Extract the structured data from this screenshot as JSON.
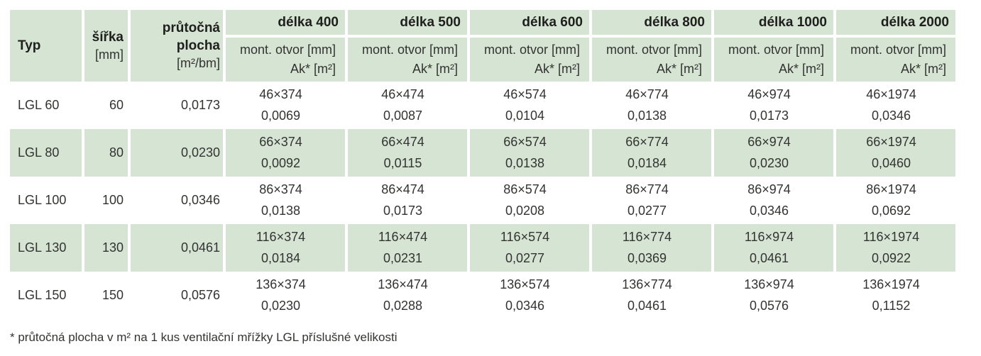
{
  "colors": {
    "band_green": "#d6e4d3",
    "text": "#333331",
    "text_bold": "#1f1f1d",
    "background": "#ffffff"
  },
  "header": {
    "typ": "Typ",
    "sirka_line1": "šířka",
    "sirka_line2": "[mm]",
    "plocha_line1": "průtočná",
    "plocha_line2": "plocha",
    "plocha_line3": "[m²/bm]",
    "delka_labels": [
      "délka 400",
      "délka 500",
      "délka 600",
      "délka 800",
      "délka 1000",
      "délka 2000"
    ],
    "sub_line1": "mont. otvor [mm]",
    "sub_line2": "Ak* [m²]"
  },
  "rows": [
    {
      "typ": "LGL 60",
      "sirka": "60",
      "plocha": "0,0173",
      "delka": [
        {
          "otvor": "46×374",
          "ak": "0,0069"
        },
        {
          "otvor": "46×474",
          "ak": "0,0087"
        },
        {
          "otvor": "46×574",
          "ak": "0,0104"
        },
        {
          "otvor": "46×774",
          "ak": "0,0138"
        },
        {
          "otvor": "46×974",
          "ak": "0,0173"
        },
        {
          "otvor": "46×1974",
          "ak": "0,0346"
        }
      ]
    },
    {
      "typ": "LGL 80",
      "sirka": "80",
      "plocha": "0,0230",
      "delka": [
        {
          "otvor": "66×374",
          "ak": "0,0092"
        },
        {
          "otvor": "66×474",
          "ak": "0,0115"
        },
        {
          "otvor": "66×574",
          "ak": "0,0138"
        },
        {
          "otvor": "66×774",
          "ak": "0,0184"
        },
        {
          "otvor": "66×974",
          "ak": "0,0230"
        },
        {
          "otvor": "66×1974",
          "ak": "0,0460"
        }
      ]
    },
    {
      "typ": "LGL 100",
      "sirka": "100",
      "plocha": "0,0346",
      "delka": [
        {
          "otvor": "86×374",
          "ak": "0,0138"
        },
        {
          "otvor": "86×474",
          "ak": "0,0173"
        },
        {
          "otvor": "86×574",
          "ak": "0,0208"
        },
        {
          "otvor": "86×774",
          "ak": "0,0277"
        },
        {
          "otvor": "86×974",
          "ak": "0,0346"
        },
        {
          "otvor": "86×1974",
          "ak": "0,0692"
        }
      ]
    },
    {
      "typ": "LGL 130",
      "sirka": "130",
      "plocha": "0,0461",
      "delka": [
        {
          "otvor": "116×374",
          "ak": "0,0184"
        },
        {
          "otvor": "116×474",
          "ak": "0,0231"
        },
        {
          "otvor": "116×574",
          "ak": "0,0277"
        },
        {
          "otvor": "116×774",
          "ak": "0,0369"
        },
        {
          "otvor": "116×974",
          "ak": "0,0461"
        },
        {
          "otvor": "116×1974",
          "ak": "0,0922"
        }
      ]
    },
    {
      "typ": "LGL 150",
      "sirka": "150",
      "plocha": "0,0576",
      "delka": [
        {
          "otvor": "136×374",
          "ak": "0,0230"
        },
        {
          "otvor": "136×474",
          "ak": "0,0288"
        },
        {
          "otvor": "136×574",
          "ak": "0,0346"
        },
        {
          "otvor": "136×774",
          "ak": "0,0461"
        },
        {
          "otvor": "136×974",
          "ak": "0,0576"
        },
        {
          "otvor": "136×1974",
          "ak": "0,1152"
        }
      ]
    }
  ],
  "footnote": "* průtočná plocha v m² na 1 kus ventilační mřížky LGL příslušné velikosti"
}
